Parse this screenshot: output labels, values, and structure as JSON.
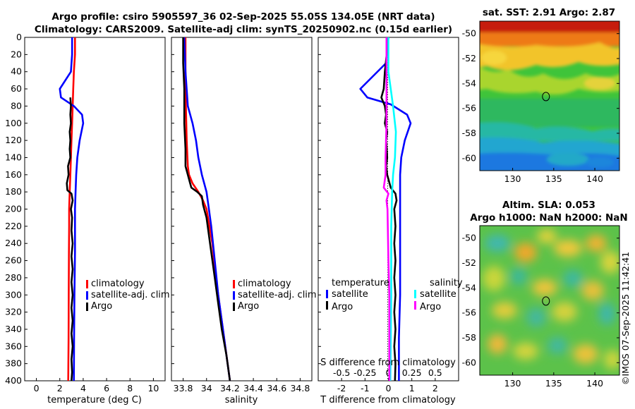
{
  "title": {
    "line1": "Argo profile: csiro 5905597_36 02-Sep-2025 55.05S 134.05E (NRT data)",
    "line2": "Climatology: CARS2009. Satellite-adj clim: synTS_20250902.nc (0.15d earlier)"
  },
  "watermark": "©IMOS 07-Sep-2025 11:42:41",
  "colors": {
    "climatology": "#ff0000",
    "satellite": "#0000ff",
    "argo": "#000000",
    "sal_satellite": "#00ffff",
    "sal_argo": "#ff00ff"
  },
  "chart_data": [
    {
      "type": "line",
      "name": "temperature",
      "xlabel": "temperature (deg C)",
      "xlim": [
        -1,
        11
      ],
      "ylim": [
        0,
        400
      ],
      "xticks": [
        "0",
        "2",
        "4",
        "6",
        "8",
        "10"
      ],
      "yticks": [
        "0",
        "20",
        "40",
        "60",
        "80",
        "100",
        "120",
        "140",
        "160",
        "180",
        "200",
        "220",
        "240",
        "260",
        "280",
        "300",
        "320",
        "340",
        "360",
        "380",
        "400"
      ],
      "legend": {
        "climatology": "climatology",
        "satellite": "satellite-adj. clim",
        "argo": "Argo"
      },
      "series": [
        {
          "name": "climatology",
          "color": "#ff0000",
          "points": [
            [
              3.3,
              0
            ],
            [
              3.3,
              20
            ],
            [
              3.2,
              40
            ],
            [
              3.15,
              60
            ],
            [
              3.1,
              80
            ],
            [
              3.05,
              100
            ],
            [
              3.0,
              120
            ],
            [
              2.95,
              140
            ],
            [
              2.9,
              160
            ],
            [
              2.85,
              180
            ],
            [
              2.8,
              200
            ],
            [
              2.8,
              220
            ],
            [
              2.78,
              250
            ],
            [
              2.76,
              300
            ],
            [
              2.75,
              350
            ],
            [
              2.72,
              400
            ]
          ]
        },
        {
          "name": "satellite",
          "color": "#0000ff",
          "points": [
            [
              3.05,
              0
            ],
            [
              3.05,
              20
            ],
            [
              2.95,
              40
            ],
            [
              2.0,
              60
            ],
            [
              2.1,
              70
            ],
            [
              3.2,
              80
            ],
            [
              3.9,
              90
            ],
            [
              4.0,
              100
            ],
            [
              3.7,
              120
            ],
            [
              3.5,
              140
            ],
            [
              3.4,
              160
            ],
            [
              3.35,
              180
            ],
            [
              3.3,
              200
            ],
            [
              3.3,
              250
            ],
            [
              3.25,
              300
            ],
            [
              3.22,
              350
            ],
            [
              3.2,
              400
            ]
          ]
        },
        {
          "name": "argo",
          "color": "#000000",
          "points": [
            [
              2.9,
              70
            ],
            [
              2.95,
              80
            ],
            [
              2.9,
              90
            ],
            [
              2.95,
              100
            ],
            [
              2.85,
              110
            ],
            [
              2.9,
              120
            ],
            [
              2.85,
              130
            ],
            [
              2.9,
              140
            ],
            [
              2.7,
              150
            ],
            [
              2.75,
              160
            ],
            [
              2.6,
              170
            ],
            [
              2.65,
              178
            ],
            [
              3.0,
              182
            ],
            [
              3.1,
              190
            ],
            [
              2.95,
              200
            ],
            [
              3.05,
              210
            ],
            [
              3.0,
              225
            ],
            [
              3.1,
              240
            ],
            [
              3.0,
              255
            ],
            [
              3.1,
              270
            ],
            [
              3.0,
              285
            ],
            [
              3.1,
              300
            ],
            [
              3.0,
              315
            ],
            [
              3.1,
              330
            ],
            [
              3.0,
              345
            ],
            [
              3.1,
              360
            ],
            [
              3.0,
              375
            ],
            [
              3.05,
              390
            ],
            [
              3.0,
              400
            ]
          ]
        }
      ]
    },
    {
      "type": "line",
      "name": "salinity",
      "xlabel": "salinity",
      "xlim": [
        33.7,
        34.9
      ],
      "ylim": [
        0,
        400
      ],
      "xticks": [
        "33.8",
        "34",
        "34.2",
        "34.4",
        "34.6",
        "34.8"
      ],
      "legend": {
        "climatology": "climatology",
        "satellite": "satellite-adj. clim",
        "argo": "Argo"
      },
      "series": [
        {
          "name": "climatology",
          "color": "#ff0000",
          "points": [
            [
              33.82,
              0
            ],
            [
              33.82,
              60
            ],
            [
              33.83,
              120
            ],
            [
              33.84,
              150
            ],
            [
              33.85,
              160
            ],
            [
              33.88,
              170
            ],
            [
              33.93,
              180
            ],
            [
              33.97,
              190
            ],
            [
              34.0,
              200
            ],
            [
              34.05,
              240
            ],
            [
              34.08,
              280
            ],
            [
              34.12,
              320
            ],
            [
              34.16,
              360
            ],
            [
              34.2,
              400
            ]
          ]
        },
        {
          "name": "satellite",
          "color": "#0000ff",
          "points": [
            [
              33.81,
              0
            ],
            [
              33.82,
              40
            ],
            [
              33.84,
              80
            ],
            [
              33.88,
              100
            ],
            [
              33.91,
              120
            ],
            [
              33.93,
              140
            ],
            [
              33.96,
              160
            ],
            [
              34.0,
              180
            ],
            [
              34.02,
              200
            ],
            [
              34.04,
              220
            ],
            [
              34.07,
              260
            ],
            [
              34.1,
              300
            ],
            [
              34.14,
              340
            ],
            [
              34.17,
              370
            ],
            [
              34.2,
              400
            ]
          ]
        },
        {
          "name": "argo",
          "color": "#000000",
          "points": [
            [
              33.8,
              0
            ],
            [
              33.8,
              30
            ],
            [
              33.81,
              60
            ],
            [
              33.81,
              100
            ],
            [
              33.82,
              130
            ],
            [
              33.82,
              150
            ],
            [
              33.84,
              160
            ],
            [
              33.86,
              170
            ],
            [
              33.87,
              175
            ],
            [
              33.92,
              180
            ],
            [
              33.96,
              185
            ],
            [
              33.97,
              195
            ],
            [
              34.0,
              210
            ],
            [
              34.03,
              240
            ],
            [
              34.07,
              280
            ],
            [
              34.1,
              310
            ],
            [
              34.13,
              340
            ],
            [
              34.17,
              370
            ],
            [
              34.2,
              400
            ]
          ]
        }
      ]
    },
    {
      "type": "line",
      "name": "difference",
      "xlabel": "T difference from climatology",
      "top_xlabel": "S difference from climatology",
      "xlim": [
        -3,
        3
      ],
      "top_xlim": [
        -0.75,
        0.75
      ],
      "ylim": [
        0,
        400
      ],
      "xticks": [
        "-2",
        "-1",
        "0",
        "1",
        "2"
      ],
      "top_xticks": [
        "-0.5",
        "-0.25",
        "0",
        "0.25",
        "0.5"
      ],
      "legend": {
        "temperature_header": "temperature",
        "salinity_header": "salinity",
        "satellite": "satellite",
        "argo": "Argo"
      },
      "series": [
        {
          "name": "T satellite",
          "color": "#0000ff",
          "points": [
            [
              0.0,
              0
            ],
            [
              -0.1,
              30
            ],
            [
              -1.2,
              60
            ],
            [
              -0.9,
              70
            ],
            [
              0.1,
              78
            ],
            [
              0.8,
              90
            ],
            [
              0.95,
              100
            ],
            [
              0.7,
              120
            ],
            [
              0.55,
              140
            ],
            [
              0.5,
              160
            ],
            [
              0.5,
              180
            ],
            [
              0.5,
              200
            ],
            [
              0.5,
              250
            ],
            [
              0.5,
              300
            ],
            [
              0.45,
              350
            ],
            [
              0.45,
              400
            ]
          ]
        },
        {
          "name": "T argo",
          "color": "#000000",
          "points": [
            [
              0.0,
              0
            ],
            [
              -0.15,
              40
            ],
            [
              -0.2,
              60
            ],
            [
              -0.3,
              70
            ],
            [
              -0.15,
              80
            ],
            [
              -0.1,
              90
            ],
            [
              -0.15,
              100
            ],
            [
              -0.05,
              110
            ],
            [
              -0.1,
              120
            ],
            [
              -0.05,
              140
            ],
            [
              -0.1,
              150
            ],
            [
              -0.05,
              160
            ],
            [
              0.1,
              175
            ],
            [
              0.3,
              182
            ],
            [
              0.35,
              190
            ],
            [
              0.25,
              200
            ],
            [
              0.3,
              220
            ],
            [
              0.25,
              240
            ],
            [
              0.3,
              260
            ],
            [
              0.25,
              280
            ],
            [
              0.3,
              300
            ],
            [
              0.25,
              320
            ],
            [
              0.3,
              340
            ],
            [
              0.25,
              360
            ],
            [
              0.3,
              380
            ],
            [
              0.28,
              400
            ]
          ]
        },
        {
          "name": "S satellite",
          "color": "#00ffff",
          "points": [
            [
              0.0,
              0
            ],
            [
              0.0,
              40
            ],
            [
              0.05,
              80
            ],
            [
              0.08,
              110
            ],
            [
              0.07,
              140
            ],
            [
              0.05,
              160
            ],
            [
              0.04,
              180
            ],
            [
              0.03,
              220
            ],
            [
              0.03,
              300
            ],
            [
              0.02,
              400
            ]
          ]
        },
        {
          "name": "S argo",
          "color": "#ff00ff",
          "points": [
            [
              -0.02,
              0
            ],
            [
              -0.02,
              60
            ],
            [
              -0.02,
              100
            ],
            [
              -0.03,
              140
            ],
            [
              -0.03,
              160
            ],
            [
              -0.05,
              175
            ],
            [
              0.0,
              182
            ],
            [
              -0.02,
              190
            ],
            [
              -0.01,
              200
            ],
            [
              0.0,
              260
            ],
            [
              0.01,
              300
            ],
            [
              0.01,
              400
            ]
          ]
        }
      ]
    },
    {
      "type": "heatmap",
      "name": "sst_map",
      "title": "sat. SST: 2.91 Argo: 2.87",
      "xlim": [
        126,
        143
      ],
      "ylim": [
        -61,
        -49
      ],
      "xticks": [
        "130",
        "135",
        "140"
      ],
      "yticks": [
        "-50",
        "-52",
        "-54",
        "-56",
        "-58",
        "-60"
      ],
      "marker": {
        "lon": 134.05,
        "lat": -55.05
      }
    },
    {
      "type": "heatmap",
      "name": "sla_map",
      "title_line1": "Altim. SLA: 0.053",
      "title_line2": "Argo h1000: NaN h2000: NaN",
      "xlim": [
        126,
        143
      ],
      "ylim": [
        -61,
        -49
      ],
      "xticks": [
        "130",
        "135",
        "140"
      ],
      "yticks": [
        "-50",
        "-52",
        "-54",
        "-56",
        "-58",
        "-60"
      ],
      "marker": {
        "lon": 134.05,
        "lat": -55.05
      }
    }
  ]
}
